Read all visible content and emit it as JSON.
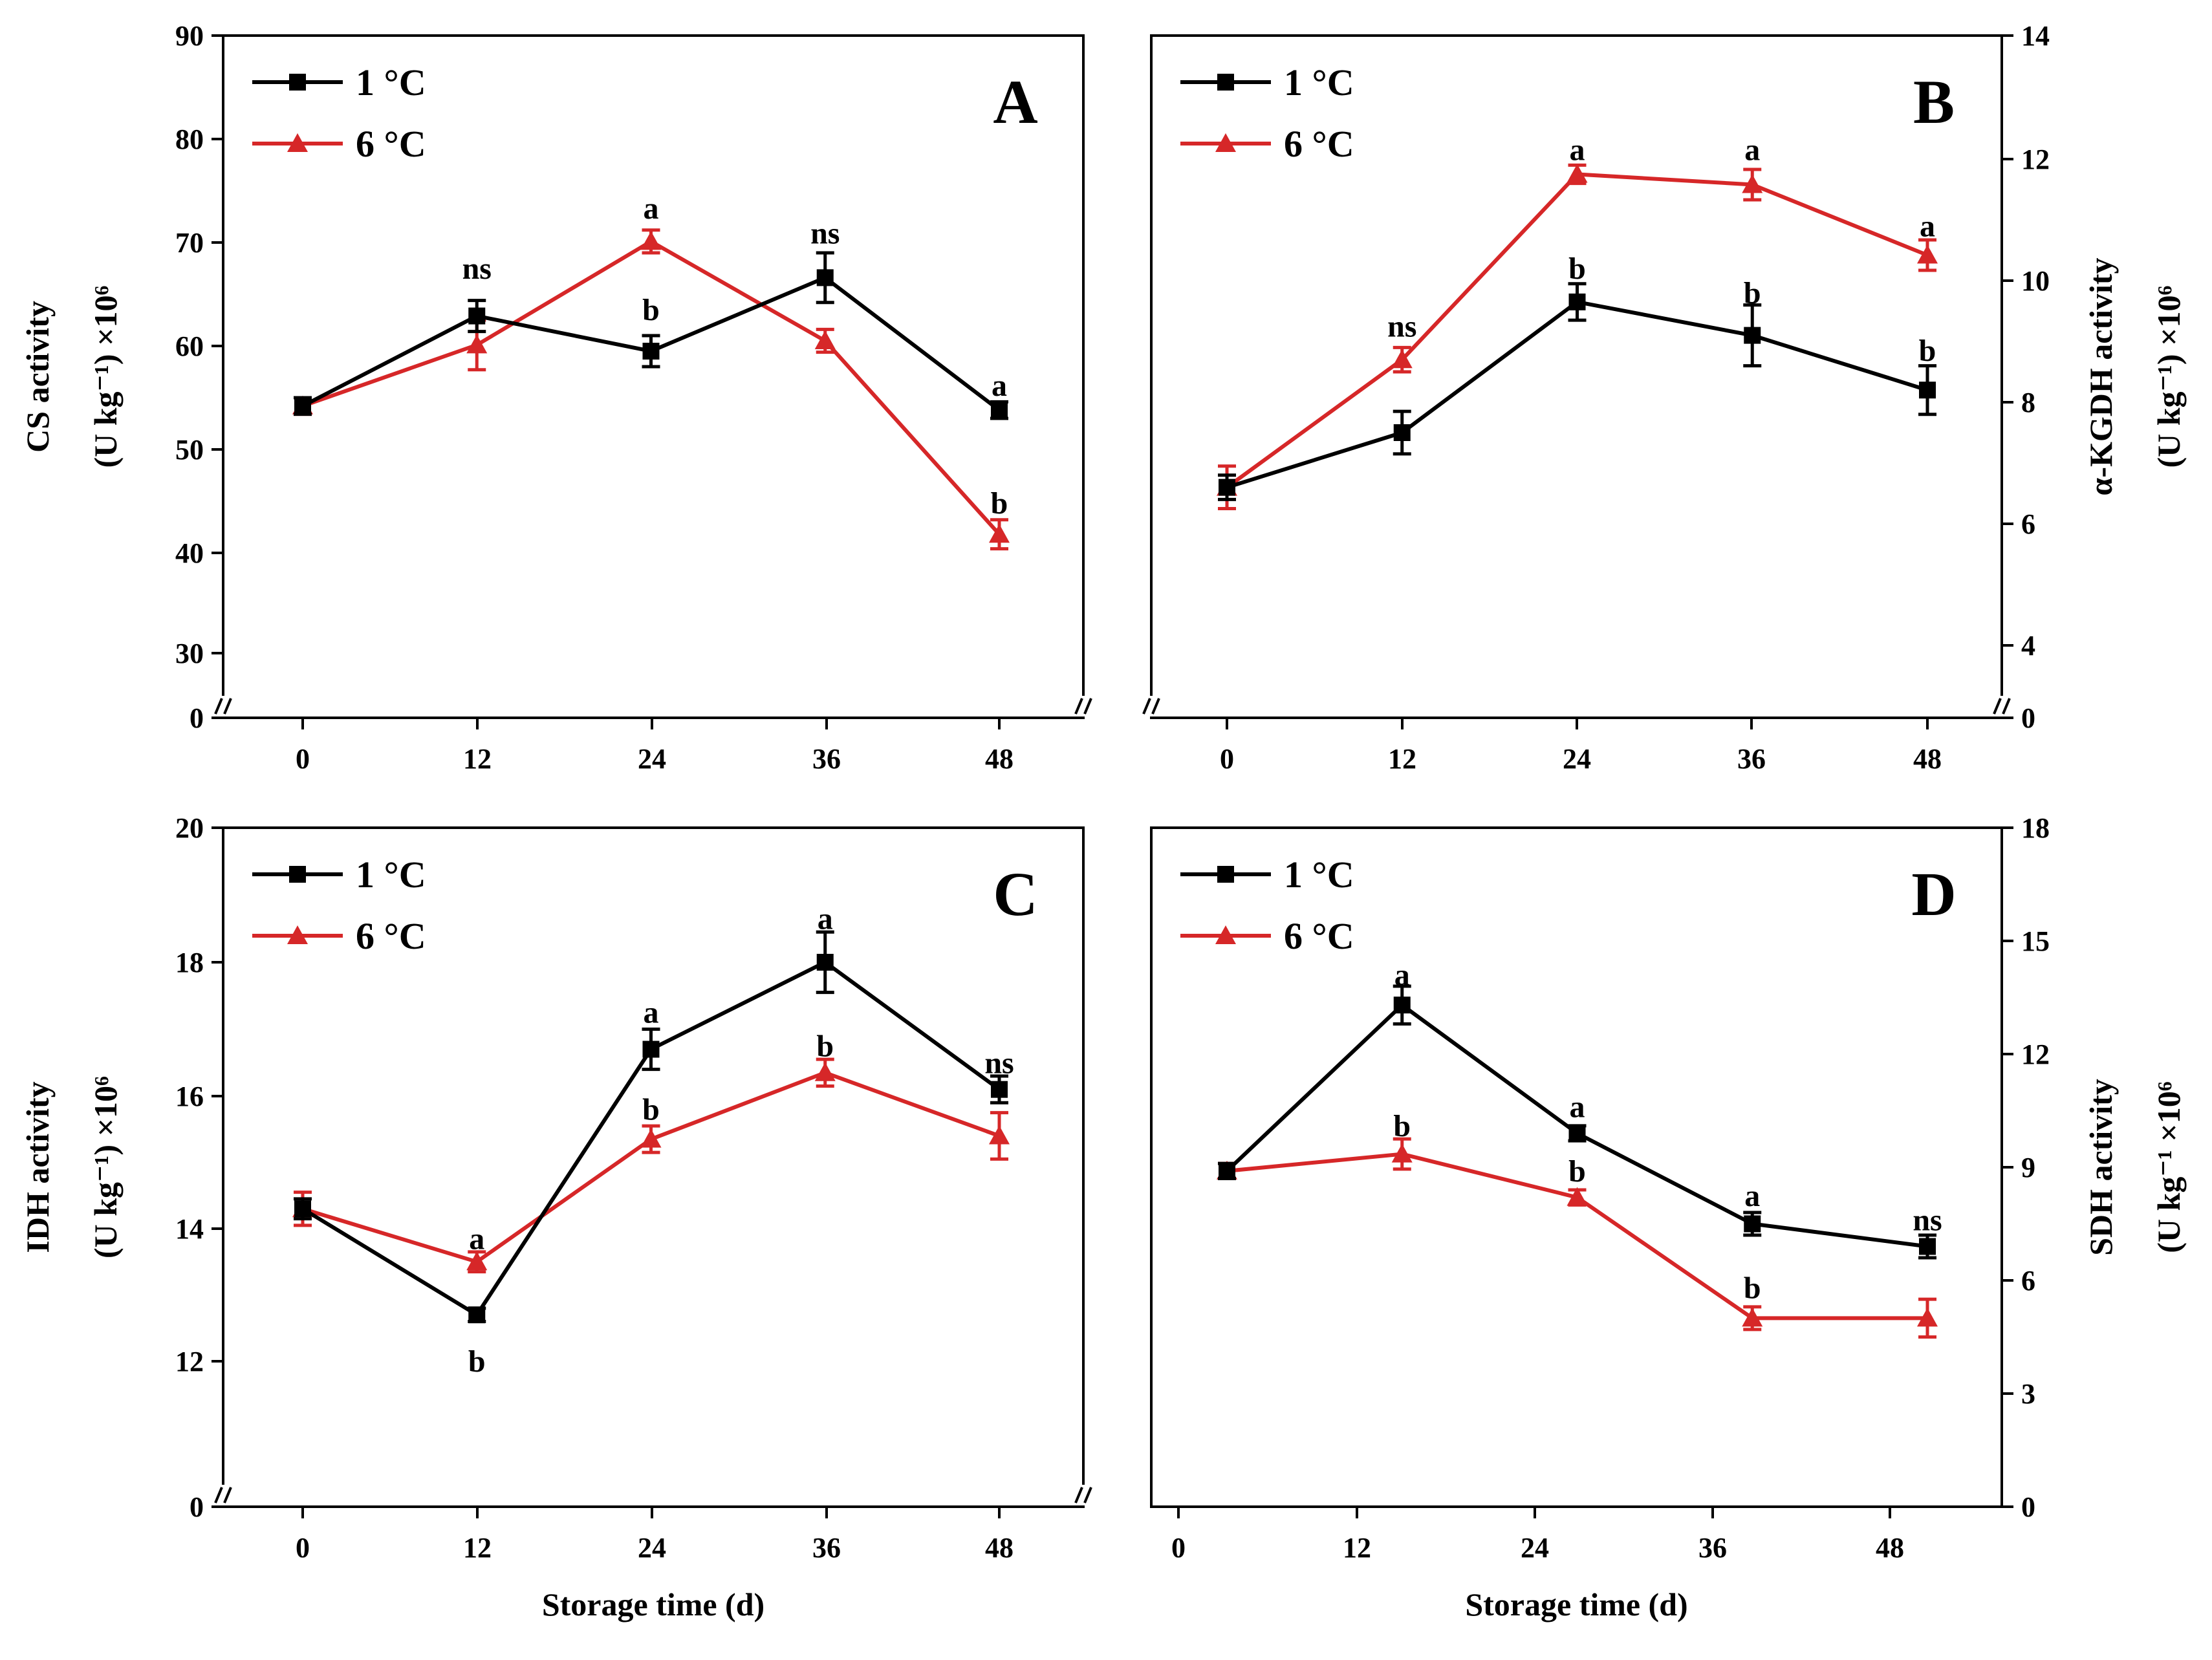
{
  "colors": {
    "series_1": "#000000",
    "series_2": "#d62728",
    "axis": "#000000"
  },
  "chart_data": [
    {
      "panel": "A",
      "type": "line",
      "x": [
        0,
        12,
        24,
        36,
        48
      ],
      "xticks": [
        "0",
        "12",
        "24",
        "36",
        "48"
      ],
      "xlabel": "",
      "ylabel_lines": [
        "CS activity",
        "(U kg⁻¹) ×10⁶"
      ],
      "ylabel_side": "left",
      "yticks": [
        "0",
        "30",
        "40",
        "50",
        "60",
        "70",
        "80",
        "90"
      ],
      "ylim": [
        25,
        90
      ],
      "axis_break": true,
      "grid": false,
      "legend_position": "top-left",
      "series": [
        {
          "name": "1 °C",
          "marker": "square",
          "values": [
            54.2,
            62.9,
            59.5,
            66.6,
            53.8
          ],
          "errors": [
            0.8,
            1.5,
            1.5,
            2.4,
            0.8
          ]
        },
        {
          "name": "6 °C",
          "marker": "triangle",
          "values": [
            54.2,
            60.1,
            70.1,
            60.5,
            41.8
          ],
          "errors": [
            0.8,
            2.4,
            1.1,
            1.1,
            1.4
          ]
        }
      ],
      "annotations": [
        {
          "x": 12,
          "text": "ns",
          "y": 67.5
        },
        {
          "x": 24,
          "text": "a",
          "y": 73.3
        },
        {
          "x": 24,
          "text": "b",
          "y": 63.5
        },
        {
          "x": 36,
          "text": "ns",
          "y": 70.9
        },
        {
          "x": 48,
          "text": "a",
          "y": 56.2
        },
        {
          "x": 48,
          "text": "b",
          "y": 44.8
        }
      ]
    },
    {
      "panel": "B",
      "type": "line",
      "x": [
        0,
        12,
        24,
        36,
        48
      ],
      "xticks": [
        "0",
        "12",
        "24",
        "36",
        "48"
      ],
      "xlabel": "",
      "ylabel_lines": [
        "α-KGDH activity",
        "(U kg⁻¹) ×10⁶"
      ],
      "ylabel_side": "right",
      "yticks": [
        "0",
        "4",
        "6",
        "8",
        "10",
        "12",
        "14"
      ],
      "ylim": [
        2.8,
        14
      ],
      "axis_break": true,
      "grid": false,
      "legend_position": "top-left",
      "series": [
        {
          "name": "1 °C",
          "marker": "square",
          "values": [
            6.6,
            7.5,
            9.65,
            9.1,
            8.2
          ],
          "errors": [
            0.2,
            0.35,
            0.3,
            0.5,
            0.4
          ]
        },
        {
          "name": "6 °C",
          "marker": "triangle",
          "values": [
            6.6,
            8.7,
            11.75,
            11.58,
            10.42
          ],
          "errors": [
            0.35,
            0.2,
            0.15,
            0.25,
            0.25
          ]
        }
      ],
      "annotations": [
        {
          "x": 12,
          "text": "ns",
          "y": 9.25
        },
        {
          "x": 24,
          "text": "a",
          "y": 12.15
        },
        {
          "x": 24,
          "text": "b",
          "y": 10.2
        },
        {
          "x": 36,
          "text": "a",
          "y": 12.15
        },
        {
          "x": 36,
          "text": "b",
          "y": 9.8
        },
        {
          "x": 48,
          "text": "a",
          "y": 10.9
        },
        {
          "x": 48,
          "text": "b",
          "y": 8.85
        }
      ]
    },
    {
      "panel": "C",
      "type": "line",
      "x": [
        0,
        12,
        24,
        36,
        48
      ],
      "xticks": [
        "0",
        "12",
        "24",
        "36",
        "48"
      ],
      "xlabel": "Storage time (d)",
      "ylabel_lines": [
        "IDH activity",
        "(U kg⁻¹) ×10⁶"
      ],
      "ylabel_side": "left",
      "yticks": [
        "0",
        "12",
        "14",
        "16",
        "18",
        "20"
      ],
      "ylim": [
        9.8,
        20
      ],
      "axis_break": true,
      "grid": false,
      "legend_position": "top-left",
      "series": [
        {
          "name": "1 °C",
          "marker": "square",
          "values": [
            14.3,
            12.7,
            16.7,
            18.0,
            16.1
          ],
          "errors": [
            0.15,
            0.1,
            0.3,
            0.45,
            0.2
          ]
        },
        {
          "name": "6 °C",
          "marker": "triangle",
          "values": [
            14.3,
            13.5,
            15.35,
            16.35,
            15.4
          ],
          "errors": [
            0.25,
            0.15,
            0.2,
            0.2,
            0.35
          ]
        }
      ],
      "annotations": [
        {
          "x": 12,
          "text": "a",
          "y": 13.85
        },
        {
          "x": 12,
          "text": "b",
          "y": 12.0
        },
        {
          "x": 24,
          "text": "a",
          "y": 17.25
        },
        {
          "x": 24,
          "text": "b",
          "y": 15.8
        },
        {
          "x": 36,
          "text": "a",
          "y": 18.65
        },
        {
          "x": 36,
          "text": "b",
          "y": 16.75
        },
        {
          "x": 48,
          "text": "ns",
          "y": 16.5
        }
      ]
    },
    {
      "panel": "D",
      "type": "line",
      "x": [
        0,
        12,
        24,
        36,
        48
      ],
      "xticks": [
        "0",
        "12",
        "24",
        "36",
        "48"
      ],
      "xlabel": "Storage time (d)",
      "ylabel_lines": [
        "SDH activity",
        "(U kg⁻¹ ×10⁶"
      ],
      "ylabel_side": "right",
      "yticks": [
        "0",
        "3",
        "6",
        "9",
        "12",
        "15",
        "18"
      ],
      "ylim": [
        0,
        18
      ],
      "axis_break": false,
      "grid": false,
      "legend_position": "top-left",
      "series": [
        {
          "name": "1 °C",
          "marker": "square",
          "values": [
            8.9,
            13.3,
            9.9,
            7.5,
            6.9
          ],
          "errors": [
            0.2,
            0.5,
            0.2,
            0.3,
            0.3
          ]
        },
        {
          "name": "6 °C",
          "marker": "triangle",
          "values": [
            8.9,
            9.35,
            8.2,
            5.0,
            5.0
          ],
          "errors": [
            0.2,
            0.4,
            0.2,
            0.3,
            0.5
          ]
        }
      ],
      "annotations": [
        {
          "x": 12,
          "text": "a",
          "y": 14.1
        },
        {
          "x": 12,
          "text": "b",
          "y": 10.1
        },
        {
          "x": 24,
          "text": "a",
          "y": 10.6
        },
        {
          "x": 24,
          "text": "b",
          "y": 8.9
        },
        {
          "x": 36,
          "text": "a",
          "y": 8.25
        },
        {
          "x": 36,
          "text": "b",
          "y": 5.8
        },
        {
          "x": 48,
          "text": "ns",
          "y": 7.6
        }
      ]
    }
  ]
}
